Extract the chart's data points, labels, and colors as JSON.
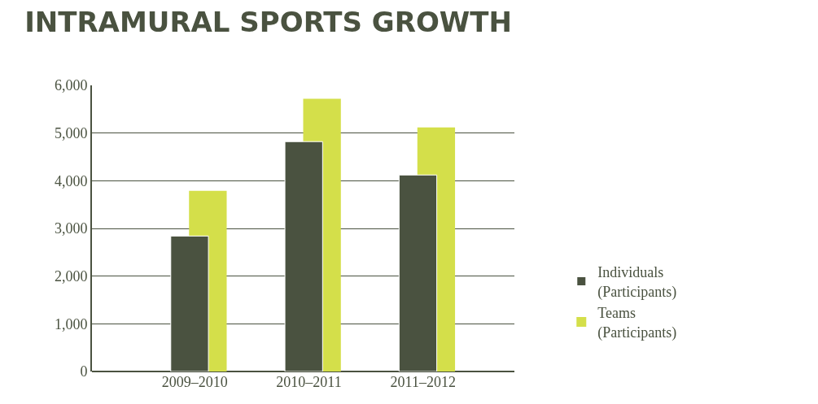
{
  "chart_data": {
    "type": "bar",
    "title": "INTRAMURAL SPORTS GROWTH",
    "categories": [
      "2009–2010",
      "2010–2011",
      "2011–2012"
    ],
    "series": [
      {
        "name": "Teams\n(Participants)",
        "color": "#d4df4a",
        "values": [
          3790,
          5720,
          5120
        ]
      },
      {
        "name": "Individuals\n(Participants)",
        "color": "#4a5240",
        "values": [
          2840,
          4820,
          4120
        ]
      }
    ],
    "ylim": [
      0,
      6000
    ],
    "yticks": [
      {
        "value": 0,
        "label": "0"
      },
      {
        "value": 1000,
        "label": "1,000"
      },
      {
        "value": 2000,
        "label": "2,000"
      },
      {
        "value": 3000,
        "label": "3,000"
      },
      {
        "value": 4000,
        "label": "4,000"
      },
      {
        "value": 5000,
        "label": "5,000"
      },
      {
        "value": 6000,
        "label": "6,000"
      }
    ],
    "grid": "y",
    "legend": "right"
  }
}
